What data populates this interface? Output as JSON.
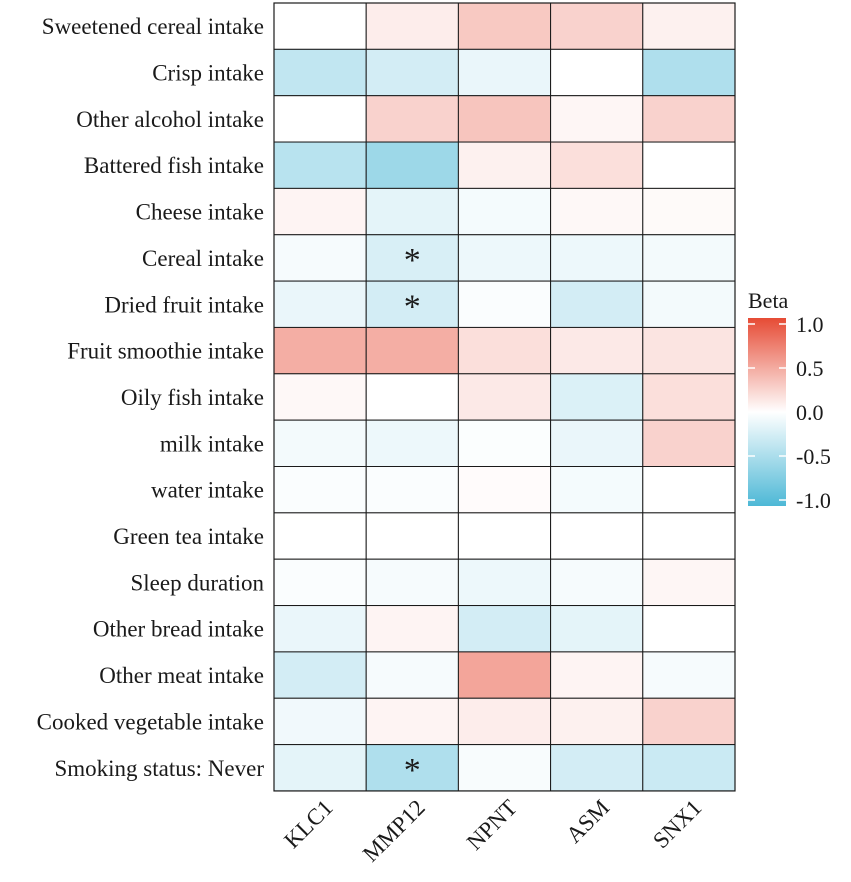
{
  "chart_data": {
    "type": "heatmap",
    "rows": [
      "Sweetened cereal intake",
      "Crisp intake",
      "Other alcohol intake",
      "Battered fish intake",
      "Cheese intake",
      "Cereal intake",
      "Dried fruit intake",
      "Fruit smoothie intake",
      "Oily fish intake",
      "milk intake",
      "water intake",
      "Green tea intake",
      "Sleep duration",
      "Other bread intake",
      "Other meat intake",
      "Cooked vegetable intake",
      "Smoking status: Never"
    ],
    "columns": [
      "KLC1",
      "MMP12",
      "NPNT",
      "ASM",
      "SNX1"
    ],
    "values": [
      [
        0.0,
        0.1,
        0.3,
        0.25,
        0.08
      ],
      [
        -0.35,
        -0.25,
        -0.12,
        0.0,
        -0.45
      ],
      [
        0.0,
        0.25,
        0.32,
        0.05,
        0.25
      ],
      [
        -0.4,
        -0.55,
        0.08,
        0.18,
        0.0
      ],
      [
        0.06,
        -0.15,
        -0.06,
        0.04,
        0.03
      ],
      [
        -0.05,
        -0.22,
        -0.1,
        -0.1,
        -0.07
      ],
      [
        -0.12,
        -0.25,
        -0.03,
        -0.25,
        -0.07
      ],
      [
        0.45,
        0.45,
        0.18,
        0.12,
        0.15
      ],
      [
        0.04,
        0.0,
        0.12,
        -0.2,
        0.18
      ],
      [
        -0.07,
        -0.1,
        -0.02,
        -0.12,
        0.25
      ],
      [
        -0.03,
        -0.03,
        0.02,
        -0.06,
        0.0
      ],
      [
        0.0,
        0.0,
        0.0,
        0.0,
        0.0
      ],
      [
        -0.03,
        -0.05,
        -0.1,
        -0.05,
        0.05
      ],
      [
        -0.12,
        0.06,
        -0.25,
        -0.15,
        0.0
      ],
      [
        -0.25,
        -0.05,
        0.5,
        0.06,
        -0.05
      ],
      [
        -0.08,
        0.06,
        0.1,
        0.08,
        0.25
      ],
      [
        -0.15,
        -0.45,
        -0.04,
        -0.25,
        -0.3
      ]
    ],
    "significant": [
      {
        "row": 5,
        "col": 1
      },
      {
        "row": 6,
        "col": 1
      },
      {
        "row": 16,
        "col": 1
      }
    ],
    "significance_marker": "*",
    "legend": {
      "title": "Beta",
      "ticks": [
        1.0,
        0.5,
        0.0,
        -0.5,
        -1.0
      ],
      "tick_labels": [
        "1.0",
        "0.5",
        "0.0",
        "-0.5",
        "-1.0"
      ],
      "range": [
        -1.0,
        1.0
      ],
      "position": "right"
    },
    "colors": {
      "low": "#4db8d6",
      "mid": "#ffffff",
      "high": "#e64b35",
      "grid": "#1a1a1a"
    },
    "title": "",
    "xlabel": "",
    "ylabel": ""
  }
}
